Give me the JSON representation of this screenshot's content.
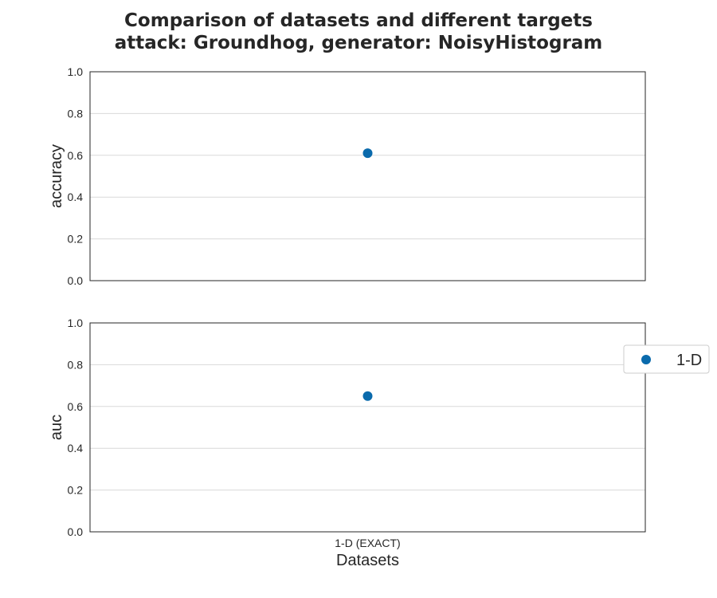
{
  "title": {
    "line1": "Comparison of datasets and different targets",
    "line2": "attack: Groundhog, generator: NoisyHistogram"
  },
  "colors": {
    "series": "#0a6aac",
    "grid": "#d9d9d9",
    "text": "#262626"
  },
  "legend": {
    "placement": "right",
    "label": "1-D"
  },
  "chart_data": [
    {
      "type": "scatter",
      "ylabel": "accuracy",
      "xlabel": "",
      "categories": [
        "1-D (EXACT)"
      ],
      "series": [
        {
          "name": "1-D",
          "values": [
            0.61
          ]
        }
      ],
      "ylim": [
        0,
        1
      ],
      "yticks": [
        "0.0",
        "0.2",
        "0.4",
        "0.6",
        "0.8",
        "1.0"
      ],
      "grid": true
    },
    {
      "type": "scatter",
      "ylabel": "auc",
      "xlabel": "Datasets",
      "categories": [
        "1-D (EXACT)"
      ],
      "series": [
        {
          "name": "1-D",
          "values": [
            0.65
          ]
        }
      ],
      "ylim": [
        0,
        1
      ],
      "yticks": [
        "0.0",
        "0.2",
        "0.4",
        "0.6",
        "0.8",
        "1.0"
      ],
      "grid": true
    }
  ]
}
